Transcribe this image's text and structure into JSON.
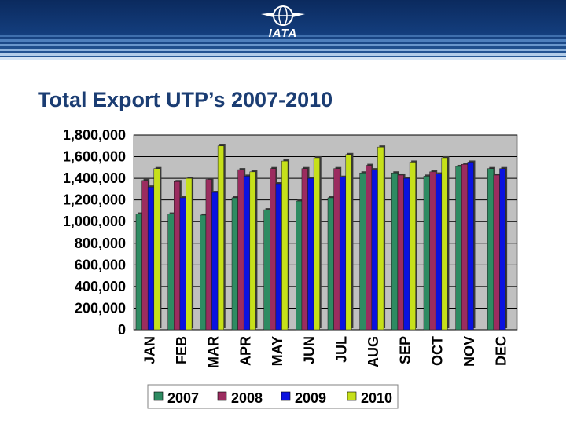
{
  "header": {
    "logo_text": "IATA"
  },
  "colors": {
    "s2007": "#2e8b62",
    "s2008": "#9b2c5f",
    "s2009": "#0a12e0",
    "s2010": "#c6e01a",
    "plot_bg": "#c0c0c0"
  },
  "chart_data": {
    "type": "bar",
    "title": "Total Export UTP’s 2007-2010",
    "xlabel": "",
    "ylabel": "",
    "ylim": [
      0,
      1800000
    ],
    "yticks": [
      "0",
      "200,000",
      "400,000",
      "600,000",
      "800,000",
      "1,000,000",
      "1,200,000",
      "1,400,000",
      "1,600,000",
      "1,800,000"
    ],
    "categories": [
      "JAN",
      "FEB",
      "MAR",
      "APR",
      "MAY",
      "JUN",
      "JUL",
      "AUG",
      "SEP",
      "OCT",
      "NOV",
      "DEC"
    ],
    "series": [
      {
        "name": "2007",
        "values": [
          1070000,
          1070000,
          1060000,
          1220000,
          1110000,
          1190000,
          1220000,
          1450000,
          1450000,
          1420000,
          1510000,
          1490000
        ]
      },
      {
        "name": "2008",
        "values": [
          1380000,
          1370000,
          1390000,
          1480000,
          1490000,
          1490000,
          1490000,
          1520000,
          1430000,
          1460000,
          1530000,
          1430000
        ]
      },
      {
        "name": "2009",
        "values": [
          1320000,
          1220000,
          1270000,
          1420000,
          1350000,
          1400000,
          1410000,
          1480000,
          1400000,
          1440000,
          1550000,
          1490000
        ]
      },
      {
        "name": "2010",
        "values": [
          1490000,
          1400000,
          1700000,
          1460000,
          1560000,
          1590000,
          1620000,
          1690000,
          1550000,
          1590000,
          null,
          null
        ]
      }
    ],
    "grid": true,
    "legend_position": "bottom"
  }
}
